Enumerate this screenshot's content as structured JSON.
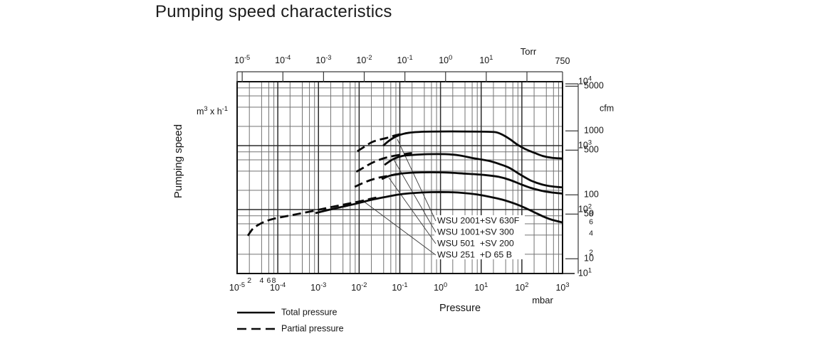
{
  "title": "Pumping speed characteristics",
  "colors": {
    "ink": "#111111",
    "curve": "#0a0a0a",
    "grid_minor": "#737373",
    "grid_major": "#2b2b2b",
    "axis_secondary": "#3a3a3a",
    "background": "#ffffff"
  },
  "chart_data": {
    "type": "line",
    "title": "Pumping speed characteristics",
    "x_scale": "log",
    "y_scale": "log",
    "xlim": [
      1e-05,
      1000
    ],
    "ylim": [
      10,
      10000
    ],
    "grid": "on",
    "xlabel": "Pressure",
    "x_unit": "mbar",
    "ylabel": "Pumping speed",
    "y_unit_parts": {
      "base": "m",
      "sup1": "3",
      "mid": " x h",
      "sup2": "-1"
    },
    "x_tick_exponents": [
      -5,
      -4,
      -3,
      -2,
      -1,
      0,
      1,
      2,
      3
    ],
    "x_minor_tick_labels": [
      {
        "label": "2",
        "value": 2e-05
      },
      {
        "label": "4",
        "value": 4e-05
      },
      {
        "label": "6",
        "value": 6e-05
      },
      {
        "label": "8",
        "value": 8e-05
      }
    ],
    "y_tick_exponents": [
      4,
      3,
      2,
      1
    ],
    "y_minor_tick_labels": [
      {
        "label": "8",
        "value": 80
      },
      {
        "label": "6",
        "value": 60
      },
      {
        "label": "4",
        "value": 40
      },
      {
        "label": "2",
        "value": 20
      }
    ],
    "top_axis": {
      "unit": "Torr",
      "torr_to_mbar": 1.3332,
      "ticks": [
        {
          "torr": 1e-05,
          "exp": -5
        },
        {
          "torr": 0.0001,
          "exp": -4
        },
        {
          "torr": 0.001,
          "exp": -3
        },
        {
          "torr": 0.01,
          "exp": -2
        },
        {
          "torr": 0.1,
          "exp": -1
        },
        {
          "torr": 1,
          "exp": 0
        },
        {
          "torr": 10,
          "exp": 1
        },
        {
          "torr": 100
        },
        {
          "torr": 750,
          "label": "750"
        }
      ]
    },
    "right_axis": {
      "unit": "cfm",
      "m3h_per_cfm": 1.699,
      "ticks": [
        5000,
        1000,
        500,
        100,
        50,
        10
      ]
    },
    "legend": [
      {
        "label": "Total pressure",
        "style": "solid"
      },
      {
        "label": "Partial pressure",
        "style": "dashed"
      }
    ],
    "curve_labels": [
      "WSU 2001+SV 630F",
      "WSU 1001+SV 300",
      "WSU 501  +SV 200",
      "WSU 251  +D 65 B"
    ],
    "series": [
      {
        "name": "WSU 2001+SV 630F total pressure",
        "style": "solid",
        "points": [
          [
            0.039,
            1000
          ],
          [
            0.058,
            1230
          ],
          [
            0.094,
            1450
          ],
          [
            0.17,
            1590
          ],
          [
            0.39,
            1650
          ],
          [
            1.0,
            1665
          ],
          [
            3.5,
            1665
          ],
          [
            12,
            1650
          ],
          [
            23,
            1620
          ],
          [
            34,
            1470
          ],
          [
            51,
            1260
          ],
          [
            79,
            1030
          ],
          [
            123,
            880
          ],
          [
            200,
            775
          ],
          [
            324,
            690
          ],
          [
            550,
            645
          ],
          [
            1000,
            630
          ]
        ]
      },
      {
        "name": "WSU 2001+SV 630F partial pressure",
        "style": "dashed",
        "points": [
          [
            0.009,
            815
          ],
          [
            0.014,
            975
          ],
          [
            0.021,
            1140
          ],
          [
            0.032,
            1240
          ],
          [
            0.048,
            1320
          ],
          [
            0.072,
            1430
          ],
          [
            0.104,
            1510
          ],
          [
            0.17,
            1590
          ]
        ]
      },
      {
        "name": "WSU 1001+SV 300 total pressure",
        "style": "solid",
        "points": [
          [
            0.042,
            500
          ],
          [
            0.069,
            615
          ],
          [
            0.115,
            690
          ],
          [
            0.21,
            715
          ],
          [
            0.48,
            735
          ],
          [
            1.3,
            735
          ],
          [
            2.9,
            705
          ],
          [
            6.5,
            635
          ],
          [
            15,
            580
          ],
          [
            27,
            520
          ],
          [
            49,
            450
          ],
          [
            90,
            355
          ],
          [
            166,
            285
          ],
          [
            304,
            248
          ],
          [
            557,
            230
          ],
          [
            1000,
            222
          ]
        ]
      },
      {
        "name": "WSU 1001+SV 300 partial pressure",
        "style": "dashed",
        "points": [
          [
            0.0085,
            390
          ],
          [
            0.013,
            455
          ],
          [
            0.021,
            540
          ],
          [
            0.035,
            615
          ],
          [
            0.059,
            675
          ],
          [
            0.096,
            715
          ],
          [
            0.143,
            745
          ],
          [
            0.198,
            765
          ]
        ]
      },
      {
        "name": "WSU 501+SV 200 total pressure",
        "style": "solid",
        "points": [
          [
            0.036,
            300
          ],
          [
            0.058,
            340
          ],
          [
            0.1,
            364
          ],
          [
            0.21,
            378
          ],
          [
            0.58,
            383
          ],
          [
            1.6,
            378
          ],
          [
            4.3,
            364
          ],
          [
            12,
            348
          ],
          [
            27,
            325
          ],
          [
            49,
            293
          ],
          [
            90,
            252
          ],
          [
            166,
            218
          ],
          [
            304,
            197
          ],
          [
            557,
            185
          ],
          [
            1000,
            178
          ]
        ]
      },
      {
        "name": "WSU 501+SV 200 partial pressure",
        "style": "dashed",
        "points": [
          [
            0.0078,
            227
          ],
          [
            0.012,
            258
          ],
          [
            0.019,
            289
          ],
          [
            0.031,
            316
          ],
          [
            0.052,
            337
          ],
          [
            0.085,
            355
          ],
          [
            0.122,
            364
          ]
        ]
      },
      {
        "name": "WSU 251+D 65 B total pressure",
        "style": "solid",
        "points": [
          [
            0.00084,
            88
          ],
          [
            0.0018,
            99
          ],
          [
            0.004,
            111
          ],
          [
            0.009,
            125
          ],
          [
            0.02,
            142
          ],
          [
            0.046,
            158
          ],
          [
            0.1,
            173
          ],
          [
            0.23,
            182
          ],
          [
            0.58,
            187
          ],
          [
            1.6,
            187
          ],
          [
            3.6,
            182
          ],
          [
            8.0,
            172
          ],
          [
            18,
            156
          ],
          [
            33,
            143
          ],
          [
            60,
            127
          ],
          [
            110,
            109
          ],
          [
            200,
            91
          ],
          [
            366,
            76
          ],
          [
            557,
            69
          ],
          [
            1000,
            63
          ]
        ]
      },
      {
        "name": "WSU 251+D 65 B partial pressure",
        "style": "dashed",
        "points": [
          [
            1.83e-05,
            39
          ],
          [
            2.43e-05,
            50
          ],
          [
            3.22e-05,
            57
          ],
          [
            4.83e-05,
            65
          ],
          [
            8.15e-05,
            72
          ],
          [
            0.000149,
            78
          ],
          [
            0.000334,
            86
          ],
          [
            0.00084,
            97
          ],
          [
            0.002,
            109
          ],
          [
            0.0046,
            121
          ],
          [
            0.01,
            134
          ],
          [
            0.019,
            147
          ],
          [
            0.033,
            159
          ]
        ]
      }
    ]
  }
}
